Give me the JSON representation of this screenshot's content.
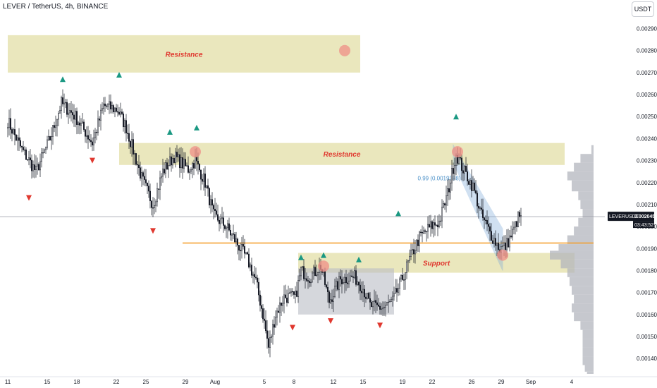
{
  "header": {
    "title": "LEVER / TetherUS, 4h, BINANCE",
    "currency_button": "USDT"
  },
  "colors": {
    "up_candle": "#131722",
    "down_candle": "#131722",
    "zone_fill": "#e6e3b2",
    "support_box": "#b9bcc4",
    "buy_marker": "#1a9882",
    "sell_marker": "#e0382f",
    "circle_marker": "#ef8f87",
    "orange_line": "#f59b22",
    "channel": "#7aa8d8",
    "volume_profile": "#b3b6bd",
    "price_label_bg": "#131722"
  },
  "chart_data": {
    "type": "candlestick",
    "symbol": "LEVERUSDT",
    "ylim": [
      0.00133,
      0.00303
    ],
    "y_ticks": [
      "0.001400",
      "0.001500",
      "0.001600",
      "0.001700",
      "0.001800",
      "0.001900",
      "0.002000",
      "0.002100",
      "0.002200",
      "0.002300",
      "0.002400",
      "0.002500",
      "0.002600",
      "0.002700",
      "0.002800",
      "0.002900"
    ],
    "x_ticks": [
      "11",
      "15",
      "18",
      "22",
      "25",
      "29",
      "Aug",
      "5",
      "8",
      "12",
      "15",
      "19",
      "22",
      "26",
      "29",
      "Sep",
      "4"
    ],
    "x_tick_index": [
      0,
      28,
      49,
      77,
      98,
      126,
      147,
      182,
      203,
      231,
      252,
      280,
      301,
      329,
      350,
      371,
      400
    ],
    "current_price": {
      "label": "LEVERUSDT",
      "value": "0.002045",
      "countdown": "03:43:52",
      "price": 0.002045
    },
    "horizontal_level": {
      "price": 0.001925,
      "start_index": 124
    },
    "zones": [
      {
        "label": "Resistance",
        "top": 0.00287,
        "bottom": 0.0027,
        "start_index": 0,
        "end_index": 250
      },
      {
        "label": "Resistance",
        "top": 0.00238,
        "bottom": 0.00228,
        "start_index": 79,
        "end_index": 395
      },
      {
        "label": "Support",
        "top": 0.00188,
        "bottom": 0.00179,
        "start_index": 206,
        "end_index": 402
      }
    ],
    "support_box": {
      "top": 0.00181,
      "bottom": 0.0016,
      "start_index": 206,
      "end_index": 274
    },
    "channel_label": "0.99 (0.0019588)",
    "channel": {
      "upper": [
        [
          316,
          0.00237
        ],
        [
          351,
          0.00199
        ]
      ],
      "lower": [
        [
          316,
          0.00229
        ],
        [
          351,
          0.0018
        ]
      ]
    },
    "buy_markers": [
      [
        39,
        0.00267
      ],
      [
        79,
        0.00269
      ],
      [
        115,
        0.00243
      ],
      [
        134,
        0.00245
      ],
      [
        208,
        0.00186
      ],
      [
        224,
        0.00187
      ],
      [
        249,
        0.00185
      ],
      [
        277,
        0.00206
      ],
      [
        318,
        0.0025
      ]
    ],
    "sell_markers": [
      [
        15,
        0.00213
      ],
      [
        60,
        0.0023
      ],
      [
        103,
        0.00198
      ],
      [
        202,
        0.00154
      ],
      [
        229,
        0.00157
      ],
      [
        264,
        0.00155
      ]
    ],
    "circle_markers": [
      [
        239,
        0.0028
      ],
      [
        133,
        0.00234
      ],
      [
        224,
        0.00182
      ],
      [
        319,
        0.00234
      ],
      [
        351,
        0.00187
      ]
    ],
    "price_waypoints": [
      [
        0,
        0.00248
      ],
      [
        10,
        0.00235
      ],
      [
        20,
        0.00225
      ],
      [
        30,
        0.0024
      ],
      [
        38,
        0.00256
      ],
      [
        48,
        0.0025
      ],
      [
        60,
        0.00238
      ],
      [
        68,
        0.00255
      ],
      [
        78,
        0.00253
      ],
      [
        84,
        0.00245
      ],
      [
        95,
        0.00222
      ],
      [
        103,
        0.0021
      ],
      [
        110,
        0.00225
      ],
      [
        118,
        0.00232
      ],
      [
        128,
        0.00226
      ],
      [
        133,
        0.0023
      ],
      [
        140,
        0.0022
      ],
      [
        146,
        0.00205
      ],
      [
        155,
        0.002
      ],
      [
        162,
        0.00193
      ],
      [
        170,
        0.00185
      ],
      [
        176,
        0.00175
      ],
      [
        181,
        0.0016
      ],
      [
        185,
        0.00145
      ],
      [
        190,
        0.0016
      ],
      [
        196,
        0.00168
      ],
      [
        204,
        0.00168
      ],
      [
        208,
        0.0018
      ],
      [
        214,
        0.00177
      ],
      [
        222,
        0.00182
      ],
      [
        228,
        0.00166
      ],
      [
        236,
        0.00176
      ],
      [
        246,
        0.00177
      ],
      [
        252,
        0.00172
      ],
      [
        257,
        0.00164
      ],
      [
        266,
        0.00163
      ],
      [
        273,
        0.00166
      ],
      [
        279,
        0.00175
      ],
      [
        285,
        0.00185
      ],
      [
        292,
        0.00195
      ],
      [
        300,
        0.002
      ],
      [
        306,
        0.00202
      ],
      [
        312,
        0.00215
      ],
      [
        318,
        0.00233
      ],
      [
        323,
        0.00226
      ],
      [
        330,
        0.00218
      ],
      [
        336,
        0.00205
      ],
      [
        343,
        0.00196
      ],
      [
        349,
        0.0019
      ],
      [
        353,
        0.00191
      ],
      [
        358,
        0.00197
      ],
      [
        362,
        0.00204
      ],
      [
        364,
        0.00205
      ]
    ],
    "volume_profile": [
      [
        0.00237,
        0.05
      ],
      [
        0.00233,
        0.3
      ],
      [
        0.00229,
        0.45
      ],
      [
        0.00225,
        0.6
      ],
      [
        0.00221,
        0.5
      ],
      [
        0.00216,
        0.35
      ],
      [
        0.00212,
        0.3
      ],
      [
        0.00208,
        0.25
      ],
      [
        0.00204,
        0.35
      ],
      [
        0.002,
        0.45
      ],
      [
        0.00196,
        0.6
      ],
      [
        0.00192,
        0.8
      ],
      [
        0.00189,
        1.0
      ],
      [
        0.00185,
        0.75
      ],
      [
        0.00181,
        0.6
      ],
      [
        0.00177,
        0.55
      ],
      [
        0.00173,
        0.5
      ],
      [
        0.00169,
        0.45
      ],
      [
        0.00165,
        0.5
      ],
      [
        0.00161,
        0.45
      ],
      [
        0.00157,
        0.3
      ],
      [
        0.00153,
        0.25
      ],
      [
        0.00149,
        0.25
      ],
      [
        0.00145,
        0.25
      ],
      [
        0.00141,
        0.25
      ],
      [
        0.00137,
        0.2
      ],
      [
        0.00134,
        0.15
      ]
    ],
    "grid": false
  }
}
